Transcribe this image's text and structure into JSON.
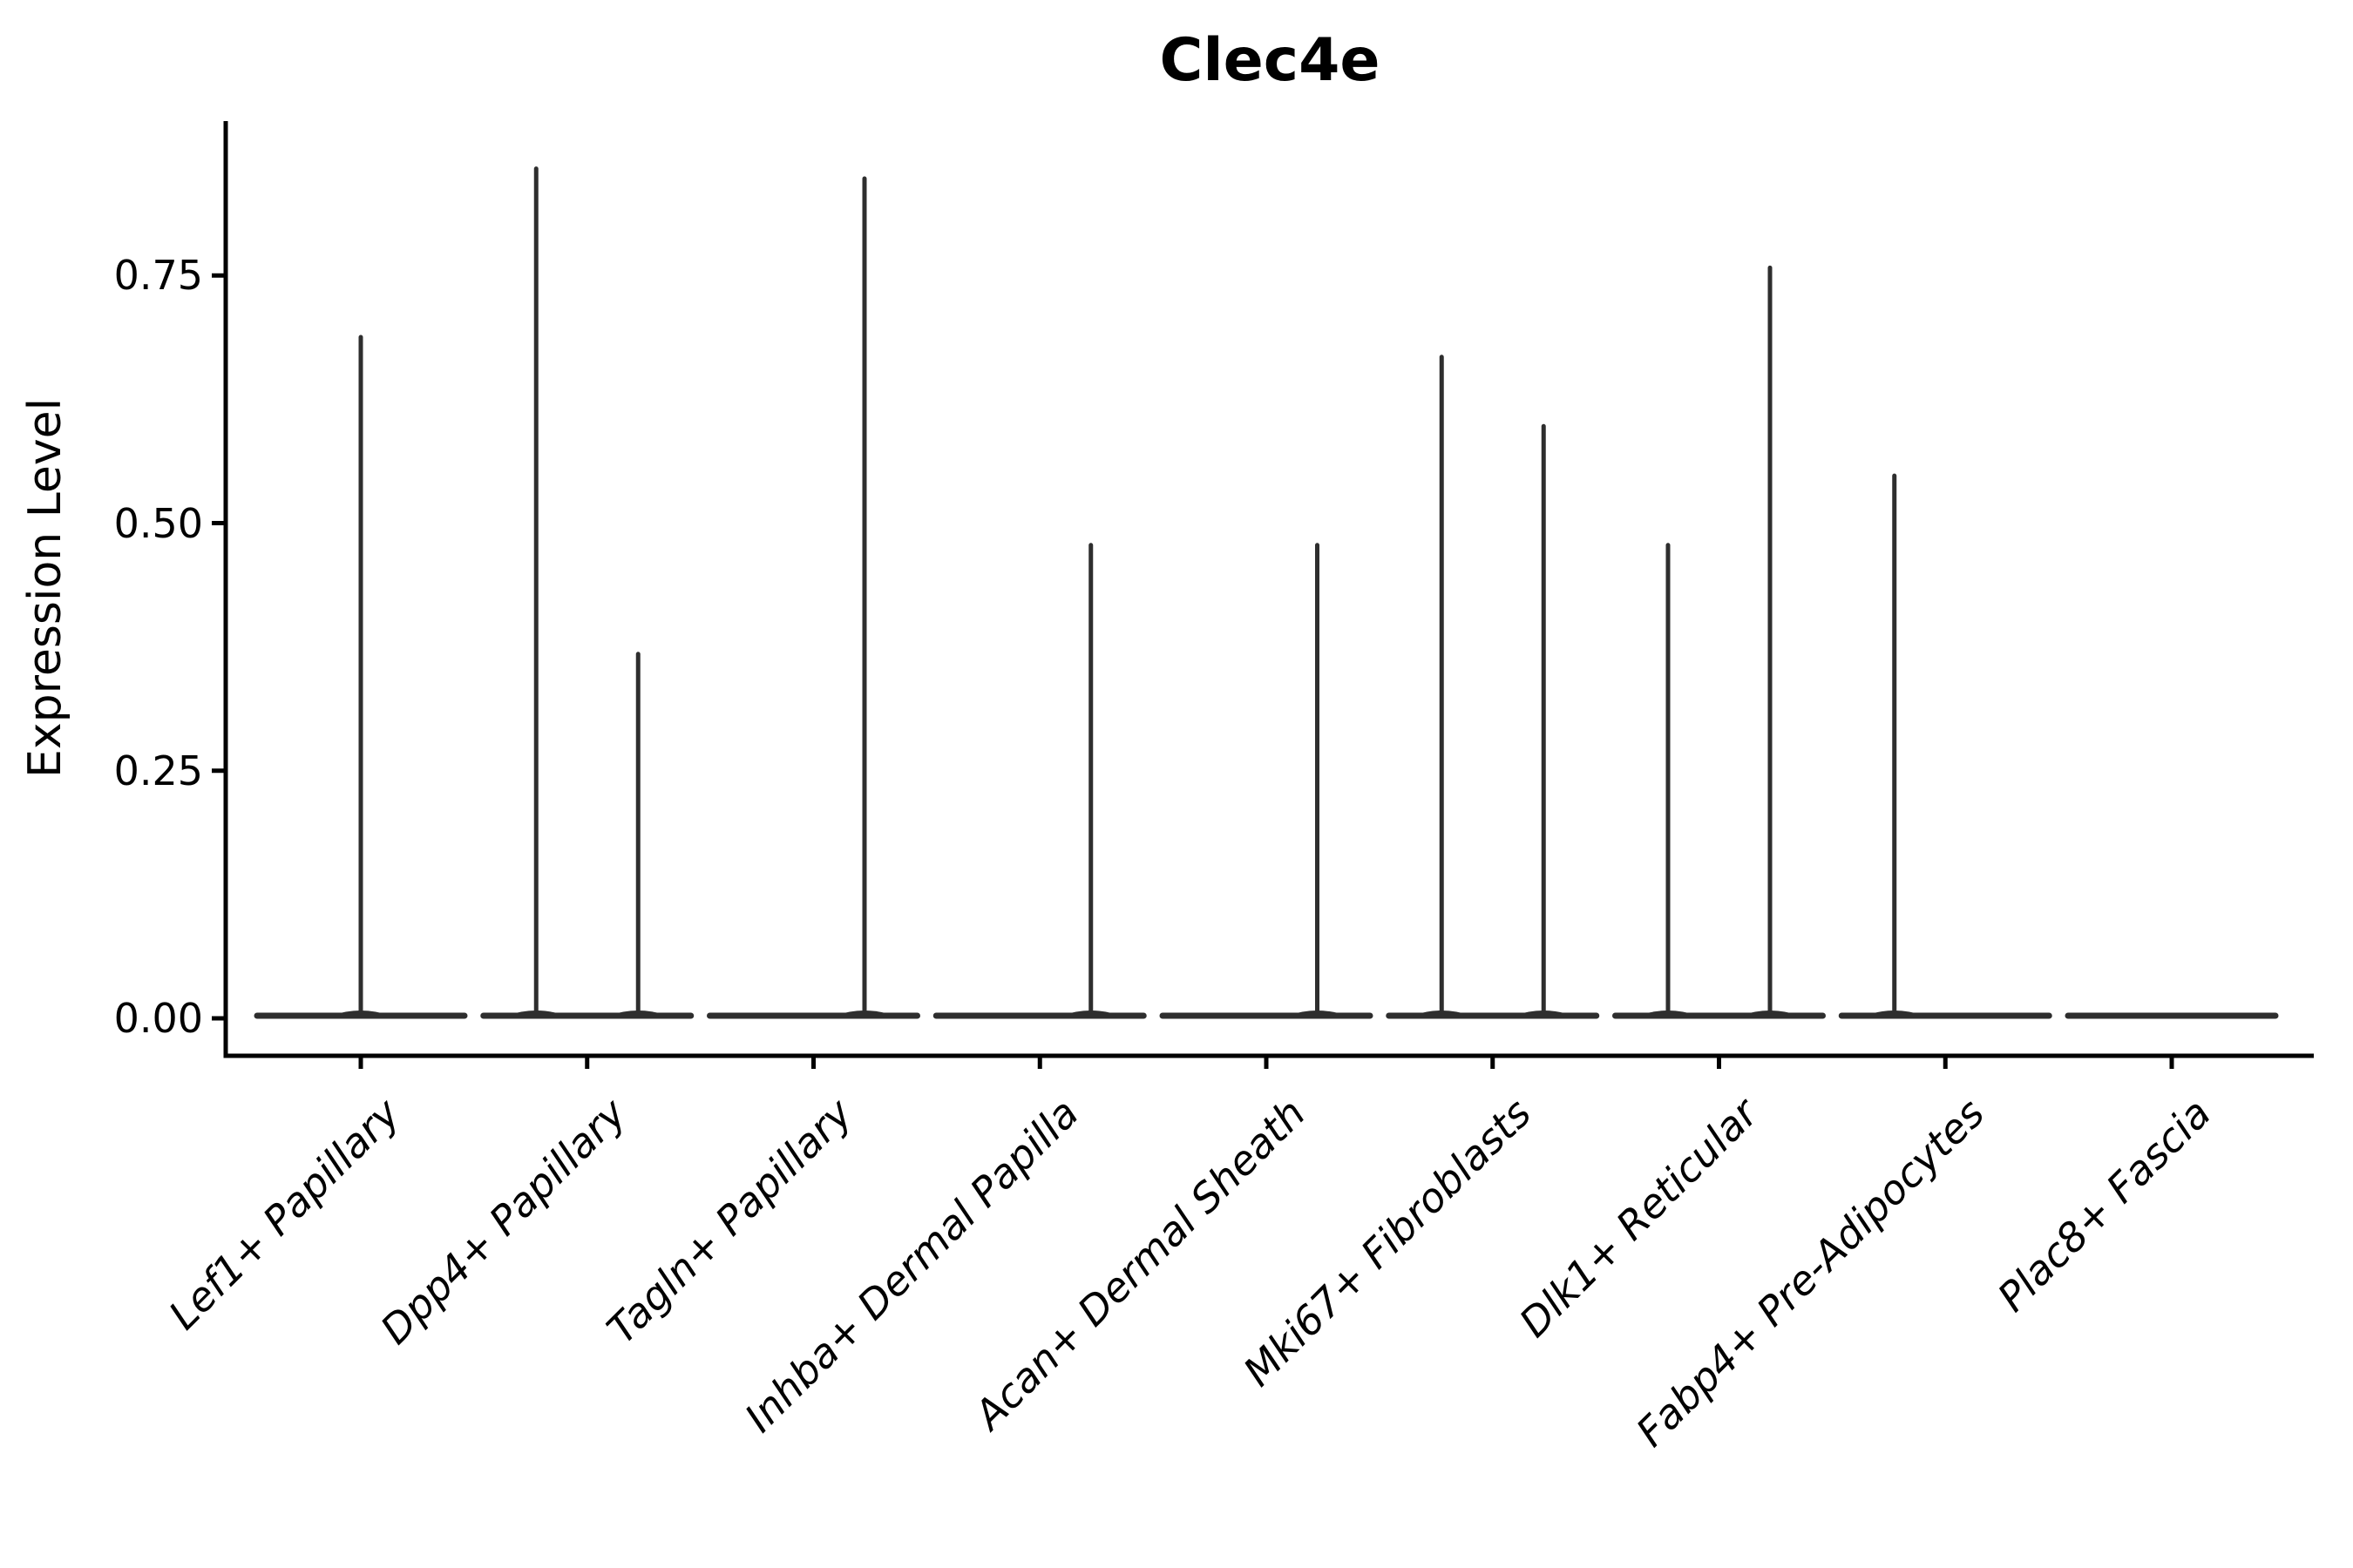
{
  "chart_data": {
    "type": "violin",
    "title": "Clec4e",
    "ylabel": "Expression Level",
    "xlabel": "",
    "legend": "none",
    "grid": false,
    "background": "#ffffff",
    "colors": {
      "violin": "#2e2e2e",
      "axis": "#000000",
      "text": "#000000"
    },
    "y_axis": {
      "ticks": [
        0.0,
        0.25,
        0.5,
        0.75
      ],
      "tick_labels": [
        "0.00",
        "0.25",
        "0.50",
        "0.75"
      ],
      "range_shown": [
        -0.04,
        0.91
      ]
    },
    "x_axis": {
      "tick_label_rotation_deg": 45,
      "tick_label_style": "italic"
    },
    "categories": [
      "Lef1+ Papillary",
      "Dpp4+ Papillary",
      "Tagln+ Papillary",
      "Inhba+ Dermal Papilla",
      "Acan+ Dermal Sheath",
      "Mki67+ Fibroblasts",
      "Dlk1+ Reticular",
      "Fabp4+ Pre-Adipocytes",
      "Plac8+ Fascia"
    ],
    "violins": [
      {
        "category": "Lef1+ Papillary",
        "baseline_band_at_zero": true,
        "spikes": [
          {
            "position": "center",
            "max": 0.69
          }
        ]
      },
      {
        "category": "Dpp4+ Papillary",
        "baseline_band_at_zero": true,
        "spikes": [
          {
            "position": "left",
            "max": 0.86
          },
          {
            "position": "right",
            "max": 0.37
          }
        ]
      },
      {
        "category": "Tagln+ Papillary",
        "baseline_band_at_zero": true,
        "spikes": [
          {
            "position": "right",
            "max": 0.85
          }
        ]
      },
      {
        "category": "Inhba+ Dermal Papilla",
        "baseline_band_at_zero": true,
        "spikes": [
          {
            "position": "right",
            "max": 0.48
          }
        ]
      },
      {
        "category": "Acan+ Dermal Sheath",
        "baseline_band_at_zero": true,
        "spikes": [
          {
            "position": "right",
            "max": 0.48
          }
        ]
      },
      {
        "category": "Mki67+ Fibroblasts",
        "baseline_band_at_zero": true,
        "spikes": [
          {
            "position": "left",
            "max": 0.67
          },
          {
            "position": "right",
            "max": 0.6
          }
        ]
      },
      {
        "category": "Dlk1+ Reticular",
        "baseline_band_at_zero": true,
        "spikes": [
          {
            "position": "left",
            "max": 0.48
          },
          {
            "position": "right",
            "max": 0.76
          }
        ]
      },
      {
        "category": "Fabp4+ Pre-Adipocytes",
        "baseline_band_at_zero": true,
        "spikes": [
          {
            "position": "left",
            "max": 0.55
          }
        ]
      },
      {
        "category": "Plac8+ Fascia",
        "baseline_band_at_zero": true,
        "spikes": []
      }
    ]
  }
}
